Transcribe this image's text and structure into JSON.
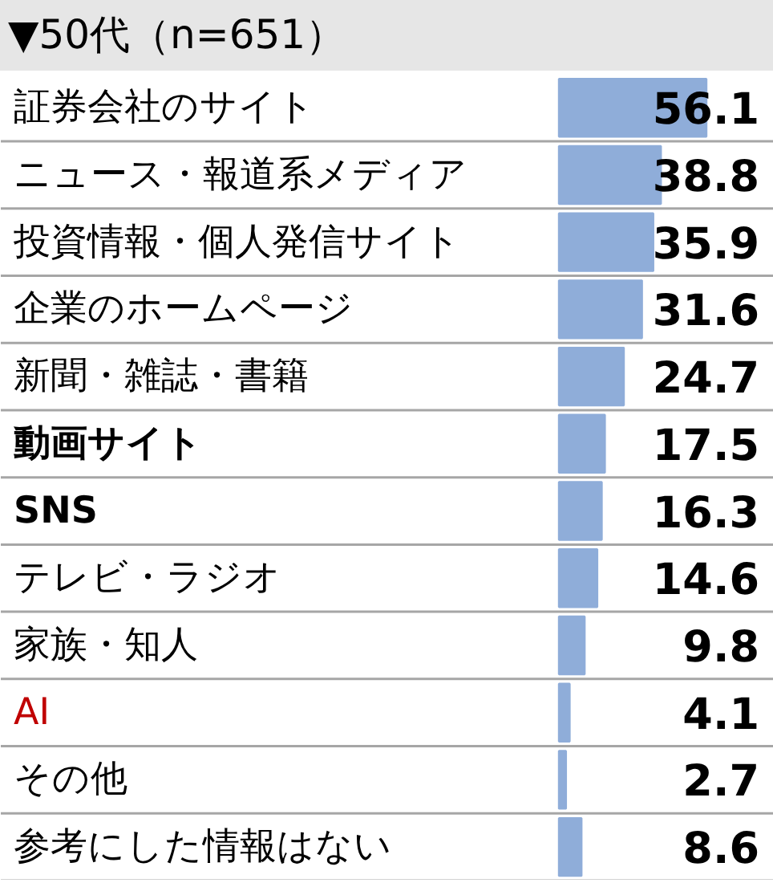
{
  "chart_data": {
    "type": "bar",
    "orientation": "horizontal",
    "title": "▼50代（n=651）",
    "categories": [
      "証券会社のサイト",
      "ニュース・報道系メディア",
      "投資情報・個人発信サイト",
      "企業のホームページ",
      "新聞・雑誌・書籍",
      "動画サイト",
      "SNS",
      "テレビ・ラジオ",
      "家族・知人",
      "AI",
      "その他",
      "参考にした情報はない"
    ],
    "values": [
      56.1,
      38.8,
      35.9,
      31.6,
      24.7,
      17.5,
      16.3,
      14.6,
      9.8,
      4.1,
      2.7,
      8.6
    ],
    "color": "#8fadd9",
    "data_labels": true,
    "grid": "y"
  }
}
